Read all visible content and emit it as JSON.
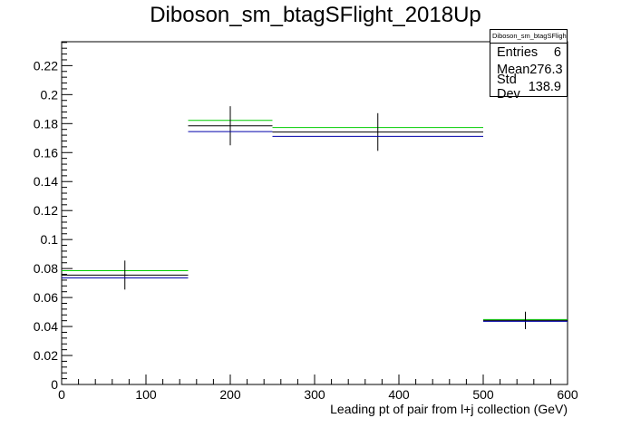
{
  "chart_data": {
    "type": "step",
    "title": "Diboson_sm_btagSFlight_2018Up",
    "xlabel": "Leading pt of pair from l+j collection (GeV)",
    "ylabel": "",
    "xlim": [
      0,
      600
    ],
    "ylim": [
      0,
      0.2365
    ],
    "x_ticks": [
      "0",
      "100",
      "200",
      "300",
      "400",
      "500",
      "600"
    ],
    "y_ticks": [
      "0",
      "0.02",
      "0.04",
      "0.06",
      "0.08",
      "0.1",
      "0.12",
      "0.14",
      "0.16",
      "0.18",
      "0.2",
      "0.22"
    ],
    "bins": [
      {
        "low": 0,
        "high": 150,
        "center": 75
      },
      {
        "low": 150,
        "high": 250,
        "center": 200
      },
      {
        "low": 250,
        "high": 500,
        "center": 375
      },
      {
        "low": 500,
        "high": 600,
        "center": 550
      }
    ],
    "series": [
      {
        "color": "#00cc00",
        "values": [
          0.0785,
          0.1822,
          0.1773,
          0.0448
        ]
      },
      {
        "color": "#000000",
        "values": [
          0.0755,
          0.1785,
          0.1742,
          0.0442
        ],
        "errors": [
          0.01,
          0.0135,
          0.013,
          0.006
        ]
      },
      {
        "color": "#0000aa",
        "values": [
          0.0735,
          0.1745,
          0.1712,
          0.0436
        ]
      }
    ],
    "grid": false,
    "legend": "none"
  },
  "stats": {
    "title": "Diboson_sm_btagSFlight_2018Up",
    "rows": [
      {
        "label": "Entries",
        "value": "6"
      },
      {
        "label": "Mean",
        "value": "276.3"
      },
      {
        "label": "Std Dev",
        "value": "138.9"
      }
    ]
  }
}
